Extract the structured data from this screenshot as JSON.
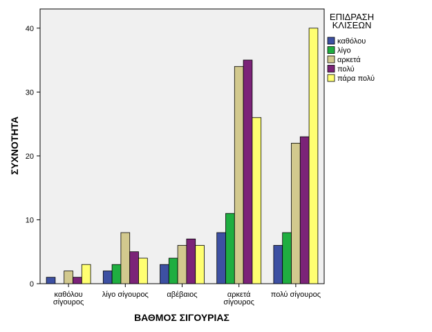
{
  "chart_data": {
    "type": "bar",
    "xlabel": "ΒΑΘΜΟΣ ΣΙΓΟΥΡΙΑΣ",
    "ylabel": "ΣΥΧΝΟΤΗΤΑ",
    "ylim": [
      0,
      43
    ],
    "yticks": [
      0,
      10,
      20,
      30,
      40
    ],
    "categories": [
      [
        "καθόλου",
        "σίγουρος"
      ],
      [
        "λίγο σίγουρος"
      ],
      [
        "αβέβαιος"
      ],
      [
        "αρκετά",
        "σίγουρος"
      ],
      [
        "πολύ σίγουρος"
      ]
    ],
    "legend": {
      "title": [
        "ΕΠΙΔΡΑΣΗ",
        "ΚΛΙΣΕΩΝ"
      ],
      "placement": "right"
    },
    "series": [
      {
        "name": "καθόλου",
        "color": "#3d50a2",
        "values": [
          1,
          2,
          3,
          8,
          6
        ]
      },
      {
        "name": "λίγο",
        "color": "#1fae40",
        "values": [
          0,
          3,
          4,
          11,
          8
        ]
      },
      {
        "name": "αρκετά",
        "color": "#d2c98e",
        "values": [
          2,
          8,
          6,
          34,
          22
        ]
      },
      {
        "name": "πολύ",
        "color": "#7b2378",
        "values": [
          1,
          5,
          7,
          35,
          23
        ]
      },
      {
        "name": "πάρα πολύ",
        "color": "#ffff71",
        "values": [
          3,
          4,
          6,
          26,
          40
        ]
      }
    ],
    "plot_background": "#f0f0f0",
    "grid": false
  }
}
